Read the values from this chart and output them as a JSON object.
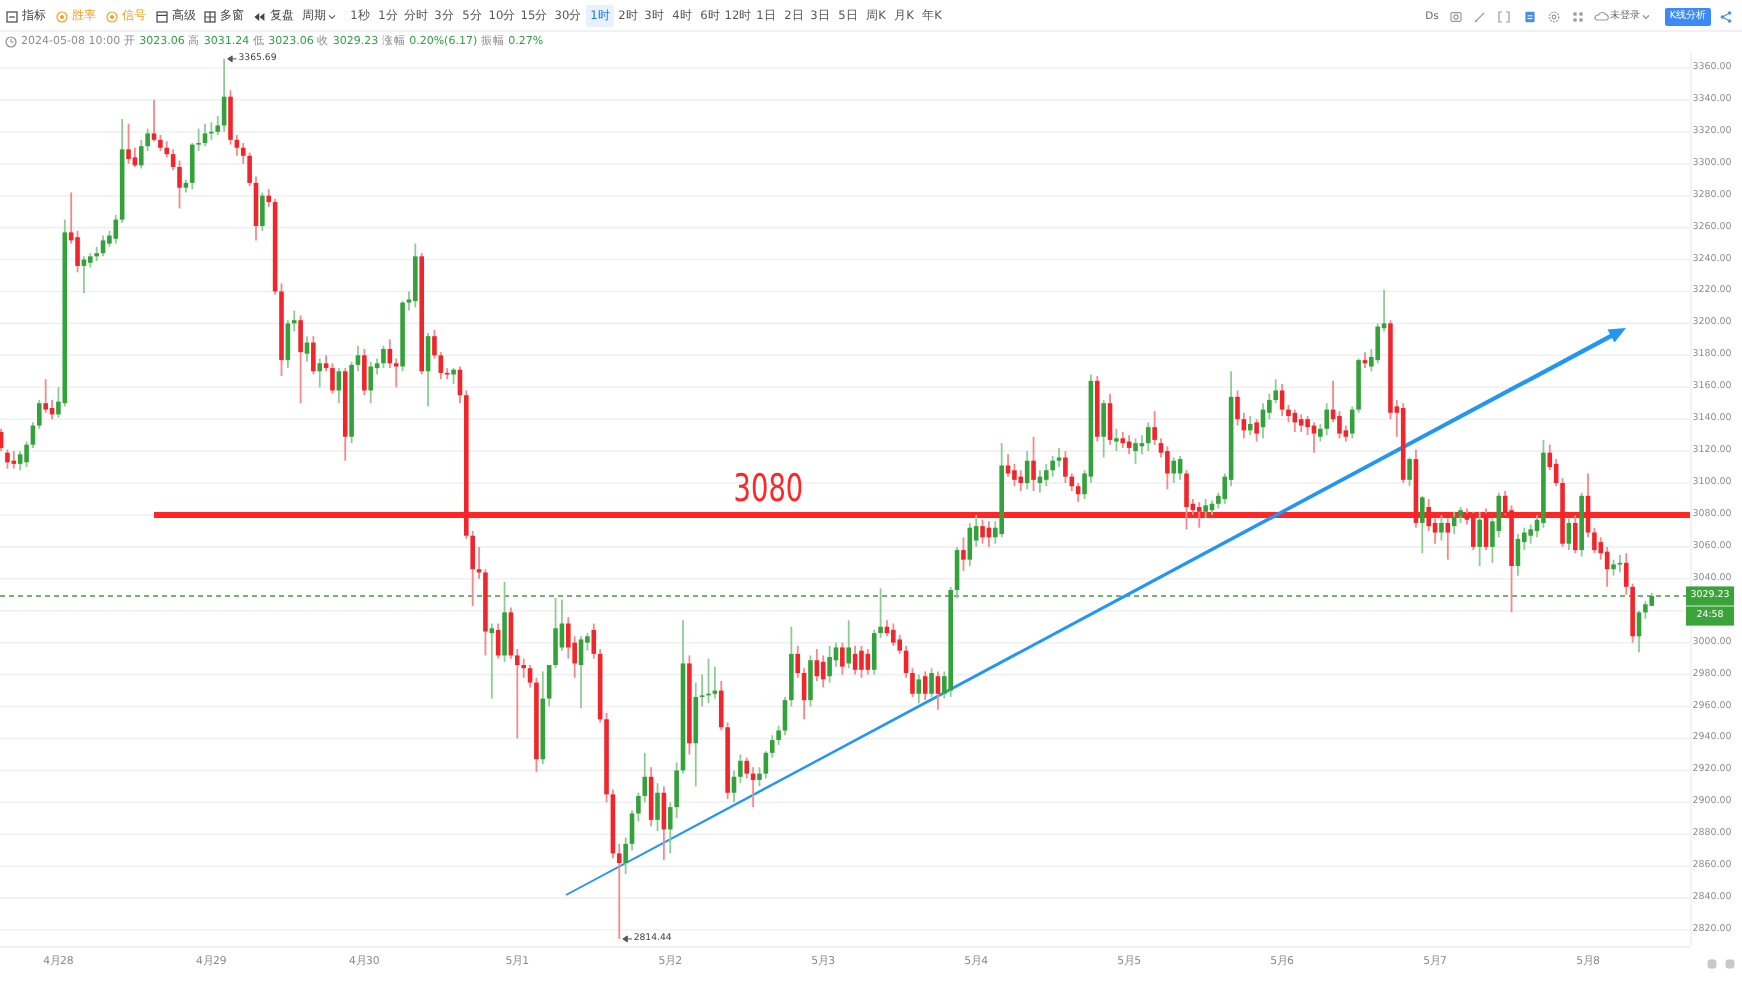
{
  "chart_data": {
    "type": "candlestick",
    "subtitle": "2024-05-08 10:00 开 3023.06 高 3031.24 低 3023.06 收 3029.23 涨幅 0.20%(6.17) 振幅 0.27%",
    "x": [
      "2024-04-27T15:00",
      "2024-04-27T16:00",
      "2024-04-27T17:00",
      "2024-04-27T18:00",
      "2024-04-27T19:00",
      "2024-04-27T20:00",
      "2024-04-27T21:00",
      "2024-04-27T22:00",
      "2024-04-27T23:00",
      "2024-04-28T00:00",
      "2024-04-28T01:00",
      "2024-04-28T02:00",
      "2024-04-28T03:00",
      "2024-04-28T04:00",
      "2024-04-28T05:00",
      "2024-04-28T06:00",
      "2024-04-28T07:00",
      "2024-04-28T08:00",
      "2024-04-28T09:00",
      "2024-04-28T10:00",
      "2024-04-28T11:00",
      "2024-04-28T12:00",
      "2024-04-28T13:00",
      "2024-04-28T14:00",
      "2024-04-28T15:00",
      "2024-04-28T16:00",
      "2024-04-28T17:00",
      "2024-04-28T18:00",
      "2024-04-28T19:00",
      "2024-04-28T20:00",
      "2024-04-28T21:00",
      "2024-04-28T22:00",
      "2024-04-28T23:00",
      "2024-04-29T00:00",
      "2024-04-29T01:00",
      "2024-04-29T02:00",
      "2024-04-29T03:00",
      "2024-04-29T04:00",
      "2024-04-29T05:00",
      "2024-04-29T06:00",
      "2024-04-29T07:00",
      "2024-04-29T08:00",
      "2024-04-29T09:00",
      "2024-04-29T10:00",
      "2024-04-29T11:00",
      "2024-04-29T12:00",
      "2024-04-29T13:00",
      "2024-04-29T14:00",
      "2024-04-29T15:00",
      "2024-04-29T16:00",
      "2024-04-29T17:00",
      "2024-04-29T18:00",
      "2024-04-29T19:00",
      "2024-04-29T20:00",
      "2024-04-29T21:00",
      "2024-04-29T22:00",
      "2024-04-29T23:00",
      "2024-04-30T00:00",
      "2024-04-30T01:00",
      "2024-04-30T02:00",
      "2024-04-30T03:00",
      "2024-04-30T04:00",
      "2024-04-30T05:00",
      "2024-04-30T06:00",
      "2024-04-30T07:00",
      "2024-04-30T08:00",
      "2024-04-30T09:00",
      "2024-04-30T10:00",
      "2024-04-30T11:00",
      "2024-04-30T12:00",
      "2024-04-30T13:00",
      "2024-04-30T14:00",
      "2024-04-30T15:00",
      "2024-04-30T16:00",
      "2024-04-30T17:00",
      "2024-04-30T18:00",
      "2024-04-30T19:00",
      "2024-04-30T20:00",
      "2024-04-30T21:00",
      "2024-04-30T22:00",
      "2024-04-30T23:00",
      "2024-05-01T00:00",
      "2024-05-01T01:00",
      "2024-05-01T02:00",
      "2024-05-01T03:00",
      "2024-05-01T04:00",
      "2024-05-01T05:00",
      "2024-05-01T06:00",
      "2024-05-01T07:00",
      "2024-05-01T08:00",
      "2024-05-01T09:00",
      "2024-05-01T10:00",
      "2024-05-01T11:00",
      "2024-05-01T12:00",
      "2024-05-01T13:00",
      "2024-05-01T14:00",
      "2024-05-01T15:00",
      "2024-05-01T16:00",
      "2024-05-01T17:00",
      "2024-05-01T18:00",
      "2024-05-01T19:00",
      "2024-05-01T20:00",
      "2024-05-01T21:00",
      "2024-05-01T22:00",
      "2024-05-01T23:00",
      "2024-05-02T00:00",
      "2024-05-02T01:00",
      "2024-05-02T02:00",
      "2024-05-02T03:00",
      "2024-05-02T04:00",
      "2024-05-02T05:00",
      "2024-05-02T06:00",
      "2024-05-02T07:00",
      "2024-05-02T08:00",
      "2024-05-02T09:00",
      "2024-05-02T10:00",
      "2024-05-02T11:00",
      "2024-05-02T12:00",
      "2024-05-02T13:00",
      "2024-05-02T14:00",
      "2024-05-02T15:00",
      "2024-05-02T16:00",
      "2024-05-02T17:00",
      "2024-05-02T18:00",
      "2024-05-02T19:00",
      "2024-05-02T20:00",
      "2024-05-02T21:00",
      "2024-05-02T22:00",
      "2024-05-02T23:00",
      "2024-05-03T00:00",
      "2024-05-03T01:00",
      "2024-05-03T02:00",
      "2024-05-03T03:00",
      "2024-05-03T04:00",
      "2024-05-03T05:00",
      "2024-05-03T06:00",
      "2024-05-03T07:00",
      "2024-05-03T08:00",
      "2024-05-03T09:00",
      "2024-05-03T10:00",
      "2024-05-03T11:00",
      "2024-05-03T12:00",
      "2024-05-03T13:00",
      "2024-05-03T14:00",
      "2024-05-03T15:00",
      "2024-05-03T16:00",
      "2024-05-03T17:00",
      "2024-05-03T18:00",
      "2024-05-03T19:00",
      "2024-05-03T20:00",
      "2024-05-03T21:00",
      "2024-05-03T22:00",
      "2024-05-03T23:00",
      "2024-05-04T00:00",
      "2024-05-04T01:00",
      "2024-05-04T02:00",
      "2024-05-04T03:00",
      "2024-05-04T04:00",
      "2024-05-04T05:00",
      "2024-05-04T06:00",
      "2024-05-04T07:00",
      "2024-05-04T08:00",
      "2024-05-04T09:00",
      "2024-05-04T10:00",
      "2024-05-04T11:00",
      "2024-05-04T12:00",
      "2024-05-04T13:00",
      "2024-05-04T14:00",
      "2024-05-04T15:00",
      "2024-05-04T16:00",
      "2024-05-04T17:00",
      "2024-05-04T18:00",
      "2024-05-04T19:00",
      "2024-05-04T20:00",
      "2024-05-04T21:00",
      "2024-05-04T22:00",
      "2024-05-04T23:00",
      "2024-05-05T00:00",
      "2024-05-05T01:00",
      "2024-05-05T02:00",
      "2024-05-05T03:00",
      "2024-05-05T04:00",
      "2024-05-05T05:00",
      "2024-05-05T06:00",
      "2024-05-05T07:00",
      "2024-05-05T08:00",
      "2024-05-05T09:00",
      "2024-05-05T10:00",
      "2024-05-05T11:00",
      "2024-05-05T12:00",
      "2024-05-05T13:00",
      "2024-05-05T14:00",
      "2024-05-05T15:00",
      "2024-05-05T16:00",
      "2024-05-05T17:00",
      "2024-05-05T18:00",
      "2024-05-05T19:00",
      "2024-05-05T20:00",
      "2024-05-05T21:00",
      "2024-05-05T22:00",
      "2024-05-05T23:00",
      "2024-05-06T00:00",
      "2024-05-06T01:00",
      "2024-05-06T02:00",
      "2024-05-06T03:00",
      "2024-05-06T04:00",
      "2024-05-06T05:00",
      "2024-05-06T06:00",
      "2024-05-06T07:00",
      "2024-05-06T08:00",
      "2024-05-06T09:00",
      "2024-05-06T10:00",
      "2024-05-06T11:00",
      "2024-05-06T12:00",
      "2024-05-06T13:00",
      "2024-05-06T14:00",
      "2024-05-06T15:00",
      "2024-05-06T16:00",
      "2024-05-06T17:00",
      "2024-05-06T18:00",
      "2024-05-06T19:00",
      "2024-05-06T20:00",
      "2024-05-06T21:00",
      "2024-05-06T22:00",
      "2024-05-06T23:00",
      "2024-05-07T00:00",
      "2024-05-07T01:00",
      "2024-05-07T02:00",
      "2024-05-07T03:00",
      "2024-05-07T04:00",
      "2024-05-07T05:00",
      "2024-05-07T06:00",
      "2024-05-07T07:00",
      "2024-05-07T08:00",
      "2024-05-07T09:00",
      "2024-05-07T10:00",
      "2024-05-07T11:00",
      "2024-05-07T12:00",
      "2024-05-07T13:00",
      "2024-05-07T14:00",
      "2024-05-07T15:00",
      "2024-05-07T16:00",
      "2024-05-07T17:00",
      "2024-05-07T18:00",
      "2024-05-07T19:00",
      "2024-05-07T20:00",
      "2024-05-07T21:00",
      "2024-05-07T22:00",
      "2024-05-07T23:00",
      "2024-05-08T00:00",
      "2024-05-08T01:00",
      "2024-05-08T02:00",
      "2024-05-08T03:00",
      "2024-05-08T04:00",
      "2024-05-08T05:00",
      "2024-05-08T06:00",
      "2024-05-08T07:00",
      "2024-05-08T08:00",
      "2024-05-08T09:00",
      "2024-05-08T10:00"
    ],
    "ohlc": [
      [
        3132,
        3134,
        3120,
        3122
      ],
      [
        3119,
        3121,
        3109,
        3113
      ],
      [
        3114,
        3120,
        3109,
        3112
      ],
      [
        3112,
        3120,
        3108,
        3118
      ],
      [
        3113,
        3126,
        3110,
        3124
      ],
      [
        3124,
        3138,
        3122,
        3136
      ],
      [
        3136,
        3152,
        3134,
        3150
      ],
      [
        3150,
        3165,
        3144,
        3146
      ],
      [
        3147,
        3152,
        3140,
        3143
      ],
      [
        3143,
        3160,
        3141,
        3151
      ],
      [
        3150,
        3265,
        3148,
        3257
      ],
      [
        3257,
        3282,
        3250,
        3252
      ],
      [
        3254,
        3258,
        3232,
        3236
      ],
      [
        3236,
        3242,
        3219,
        3240
      ],
      [
        3238,
        3244,
        3235,
        3242
      ],
      [
        3242,
        3248,
        3239,
        3244
      ],
      [
        3244,
        3255,
        3242,
        3252
      ],
      [
        3250,
        3258,
        3248,
        3255
      ],
      [
        3253,
        3268,
        3250,
        3265
      ],
      [
        3265,
        3328,
        3263,
        3309
      ],
      [
        3309,
        3325,
        3300,
        3303
      ],
      [
        3304,
        3310,
        3298,
        3299
      ],
      [
        3299,
        3315,
        3297,
        3311
      ],
      [
        3311,
        3322,
        3308,
        3319
      ],
      [
        3319,
        3340,
        3314,
        3315
      ],
      [
        3315,
        3318,
        3308,
        3310
      ],
      [
        3310,
        3314,
        3304,
        3306
      ],
      [
        3306,
        3309,
        3296,
        3298
      ],
      [
        3298,
        3302,
        3272,
        3285
      ],
      [
        3285,
        3290,
        3282,
        3288
      ],
      [
        3288,
        3313,
        3284,
        3312
      ],
      [
        3312,
        3322,
        3308,
        3313
      ],
      [
        3313,
        3325,
        3311,
        3319
      ],
      [
        3319,
        3326,
        3315,
        3320
      ],
      [
        3320,
        3330,
        3318,
        3324
      ],
      [
        3324,
        3365.69,
        3320,
        3342
      ],
      [
        3342,
        3346,
        3312,
        3315
      ],
      [
        3315,
        3318,
        3305,
        3310
      ],
      [
        3310,
        3313,
        3300,
        3305
      ],
      [
        3305,
        3307,
        3286,
        3288
      ],
      [
        3288,
        3292,
        3252,
        3261
      ],
      [
        3261,
        3282,
        3258,
        3280
      ],
      [
        3280,
        3284,
        3273,
        3276
      ],
      [
        3276,
        3278,
        3218,
        3220
      ],
      [
        3220,
        3225,
        3167,
        3177
      ],
      [
        3177,
        3202,
        3172,
        3200
      ],
      [
        3200,
        3208,
        3195,
        3202
      ],
      [
        3202,
        3205,
        3150,
        3182
      ],
      [
        3181,
        3192,
        3176,
        3188
      ],
      [
        3188,
        3192,
        3168,
        3170
      ],
      [
        3170,
        3178,
        3160,
        3175
      ],
      [
        3175,
        3180,
        3170,
        3172
      ],
      [
        3172,
        3175,
        3156,
        3158
      ],
      [
        3158,
        3172,
        3150,
        3170
      ],
      [
        3170,
        3172,
        3114,
        3129
      ],
      [
        3129,
        3176,
        3125,
        3174
      ],
      [
        3174,
        3186,
        3170,
        3180
      ],
      [
        3180,
        3184,
        3155,
        3158
      ],
      [
        3158,
        3176,
        3150,
        3173
      ],
      [
        3172,
        3178,
        3168,
        3175
      ],
      [
        3175,
        3186,
        3172,
        3184
      ],
      [
        3184,
        3190,
        3172,
        3175
      ],
      [
        3175,
        3178,
        3160,
        3173
      ],
      [
        3173,
        3214,
        3170,
        3213
      ],
      [
        3213,
        3220,
        3208,
        3215
      ],
      [
        3214,
        3250,
        3210,
        3242
      ],
      [
        3242,
        3244,
        3168,
        3170
      ],
      [
        3170,
        3194,
        3148,
        3192
      ],
      [
        3192,
        3196,
        3178,
        3180
      ],
      [
        3180,
        3182,
        3165,
        3169
      ],
      [
        3169,
        3172,
        3165,
        3168
      ],
      [
        3168,
        3172,
        3162,
        3171
      ],
      [
        3171,
        3173,
        3150,
        3155
      ],
      [
        3155,
        3158,
        3065,
        3067
      ],
      [
        3067,
        3070,
        3023,
        3046
      ],
      [
        3046,
        3060,
        3040,
        3044
      ],
      [
        3044,
        3046,
        2992,
        3007
      ],
      [
        3006,
        3012,
        2965,
        3009
      ],
      [
        3008,
        3012,
        2990,
        2992
      ],
      [
        2992,
        3038,
        2988,
        3019
      ],
      [
        3019,
        3022,
        2990,
        2992
      ],
      [
        2992,
        2996,
        2940,
        2986
      ],
      [
        2986,
        2990,
        2978,
        2984
      ],
      [
        2984,
        2986,
        2972,
        2975
      ],
      [
        2975,
        2978,
        2919,
        2927
      ],
      [
        2927,
        2982,
        2924,
        2965
      ],
      [
        2965,
        2986,
        2960,
        2986
      ],
      [
        2986,
        3028,
        2984,
        3009
      ],
      [
        2997,
        3027,
        2995,
        3012
      ],
      [
        3012,
        3016,
        2990,
        2997
      ],
      [
        3000,
        3004,
        2978,
        2987
      ],
      [
        2986,
        3004,
        2959,
        3002
      ],
      [
        3000,
        3006,
        2995,
        3004
      ],
      [
        3008,
        3012,
        2990,
        2993
      ],
      [
        2993,
        2996,
        2950,
        2952
      ],
      [
        2952,
        2956,
        2900,
        2905
      ],
      [
        2905,
        2908,
        2865,
        2868
      ],
      [
        2868,
        2874,
        2814.44,
        2862
      ],
      [
        2862,
        2878,
        2855,
        2874
      ],
      [
        2874,
        2895,
        2870,
        2893
      ],
      [
        2893,
        2906,
        2888,
        2904
      ],
      [
        2904,
        2931,
        2900,
        2916
      ],
      [
        2916,
        2922,
        2885,
        2889
      ],
      [
        2889,
        2912,
        2882,
        2906
      ],
      [
        2906,
        2910,
        2864,
        2883
      ],
      [
        2883,
        2900,
        2868,
        2897
      ],
      [
        2897,
        2925,
        2890,
        2920
      ],
      [
        2920,
        3014,
        2918,
        2987
      ],
      [
        2987,
        2992,
        2930,
        2937
      ],
      [
        2937,
        2975,
        2910,
        2966
      ],
      [
        2966,
        2980,
        2960,
        2967
      ],
      [
        2967,
        2990,
        2962,
        2968
      ],
      [
        2968,
        2985,
        2965,
        2970
      ],
      [
        2970,
        2976,
        2945,
        2947
      ],
      [
        2947,
        2950,
        2902,
        2906
      ],
      [
        2906,
        2920,
        2900,
        2916
      ],
      [
        2916,
        2930,
        2912,
        2926
      ],
      [
        2926,
        2928,
        2915,
        2918
      ],
      [
        2918,
        2922,
        2897,
        2914
      ],
      [
        2914,
        2922,
        2910,
        2918
      ],
      [
        2918,
        2932,
        2915,
        2931
      ],
      [
        2931,
        2942,
        2928,
        2939
      ],
      [
        2939,
        2948,
        2936,
        2945
      ],
      [
        2945,
        2966,
        2942,
        2964
      ],
      [
        2964,
        3010,
        2960,
        2993
      ],
      [
        2993,
        2998,
        2978,
        2981
      ],
      [
        2981,
        2984,
        2952,
        2964
      ],
      [
        2964,
        2992,
        2960,
        2989
      ],
      [
        2989,
        2996,
        2976,
        2979
      ],
      [
        2988,
        2992,
        2972,
        2977
      ],
      [
        2979,
        2998,
        2975,
        2991
      ],
      [
        2989,
        3000,
        2985,
        2997
      ],
      [
        2997,
        3000,
        2980,
        2985
      ],
      [
        2987,
        3014,
        2984,
        2997
      ],
      [
        2993,
        2998,
        2980,
        2983
      ],
      [
        2995,
        2998,
        2978,
        2983
      ],
      [
        2993,
        2996,
        2980,
        2983
      ],
      [
        2983,
        3008,
        2980,
        3006
      ],
      [
        3006,
        3034,
        3003,
        3010
      ],
      [
        3010,
        3014,
        3004,
        3006
      ],
      [
        3008,
        3012,
        2998,
        3000
      ],
      [
        3002,
        3005,
        2993,
        2995
      ],
      [
        2995,
        2998,
        2978,
        2981
      ],
      [
        2981,
        2984,
        2966,
        2968
      ],
      [
        2968,
        2980,
        2962,
        2977
      ],
      [
        2979,
        2982,
        2964,
        2968
      ],
      [
        2968,
        2984,
        2966,
        2981
      ],
      [
        2979,
        2982,
        2958,
        2968
      ],
      [
        2968,
        2982,
        2965,
        2979
      ],
      [
        2970,
        3035,
        2966,
        3033
      ],
      [
        3033,
        3060,
        3028,
        3058
      ],
      [
        3058,
        3066,
        3045,
        3052
      ],
      [
        3052,
        3075,
        3048,
        3072
      ],
      [
        3064,
        3080,
        3060,
        3073
      ],
      [
        3073,
        3077,
        3062,
        3066
      ],
      [
        3072,
        3076,
        3060,
        3066
      ],
      [
        3066,
        3076,
        3062,
        3072
      ],
      [
        3068,
        3125,
        3066,
        3111
      ],
      [
        3111,
        3118,
        3104,
        3106
      ],
      [
        3108,
        3112,
        3098,
        3102
      ],
      [
        3104,
        3108,
        3095,
        3100
      ],
      [
        3100,
        3120,
        3096,
        3114
      ],
      [
        3114,
        3129,
        3095,
        3102
      ],
      [
        3100,
        3108,
        3094,
        3104
      ],
      [
        3102,
        3112,
        3098,
        3108
      ],
      [
        3108,
        3117,
        3104,
        3114
      ],
      [
        3114,
        3122,
        3110,
        3116
      ],
      [
        3116,
        3120,
        3100,
        3104
      ],
      [
        3104,
        3106,
        3095,
        3098
      ],
      [
        3098,
        3100,
        3088,
        3093
      ],
      [
        3093,
        3108,
        3090,
        3106
      ],
      [
        3104,
        3168,
        3100,
        3164
      ],
      [
        3164,
        3167,
        3126,
        3129
      ],
      [
        3129,
        3152,
        3116,
        3150
      ],
      [
        3150,
        3156,
        3124,
        3127
      ],
      [
        3126,
        3134,
        3120,
        3128
      ],
      [
        3128,
        3132,
        3122,
        3125
      ],
      [
        3126,
        3130,
        3118,
        3122
      ],
      [
        3120,
        3128,
        3112,
        3125
      ],
      [
        3123,
        3130,
        3118,
        3125
      ],
      [
        3125,
        3138,
        3120,
        3135
      ],
      [
        3135,
        3145,
        3124,
        3127
      ],
      [
        3125,
        3128,
        3116,
        3119
      ],
      [
        3120,
        3123,
        3096,
        3106
      ],
      [
        3106,
        3116,
        3100,
        3114
      ],
      [
        3106,
        3117,
        3102,
        3115
      ],
      [
        3106,
        3108,
        3071,
        3085
      ],
      [
        3087,
        3090,
        3080,
        3083
      ],
      [
        3085,
        3088,
        3072,
        3082
      ],
      [
        3082,
        3090,
        3078,
        3086
      ],
      [
        3083,
        3089,
        3080,
        3087
      ],
      [
        3087,
        3094,
        3084,
        3092
      ],
      [
        3090,
        3106,
        3087,
        3104
      ],
      [
        3102,
        3170,
        3098,
        3154
      ],
      [
        3154,
        3158,
        3136,
        3140
      ],
      [
        3140,
        3144,
        3128,
        3133
      ],
      [
        3133,
        3142,
        3130,
        3137
      ],
      [
        3138,
        3140,
        3126,
        3131
      ],
      [
        3135,
        3150,
        3128,
        3146
      ],
      [
        3144,
        3156,
        3140,
        3152
      ],
      [
        3152,
        3165,
        3150,
        3158
      ],
      [
        3158,
        3162,
        3142,
        3146
      ],
      [
        3146,
        3149,
        3138,
        3142
      ],
      [
        3144,
        3146,
        3132,
        3138
      ],
      [
        3140,
        3143,
        3132,
        3136
      ],
      [
        3140,
        3142,
        3130,
        3135
      ],
      [
        3136,
        3138,
        3119,
        3131
      ],
      [
        3129,
        3137,
        3126,
        3134
      ],
      [
        3134,
        3150,
        3130,
        3146
      ],
      [
        3146,
        3164,
        3138,
        3140
      ],
      [
        3142,
        3145,
        3128,
        3131
      ],
      [
        3133,
        3136,
        3126,
        3129
      ],
      [
        3131,
        3148,
        3128,
        3146
      ],
      [
        3146,
        3178,
        3144,
        3177
      ],
      [
        3177,
        3182,
        3172,
        3175
      ],
      [
        3173,
        3184,
        3170,
        3179
      ],
      [
        3177,
        3200,
        3175,
        3198
      ],
      [
        3197,
        3221,
        3195,
        3200
      ],
      [
        3200,
        3202,
        3140,
        3144
      ],
      [
        3148,
        3152,
        3129,
        3144
      ],
      [
        3147,
        3150,
        3100,
        3102
      ],
      [
        3102,
        3116,
        3098,
        3115
      ],
      [
        3115,
        3121,
        3072,
        3075
      ],
      [
        3075,
        3092,
        3056,
        3091
      ],
      [
        3085,
        3090,
        3070,
        3073
      ],
      [
        3075,
        3078,
        3062,
        3069
      ],
      [
        3069,
        3080,
        3064,
        3075
      ],
      [
        3075,
        3078,
        3052,
        3069
      ],
      [
        3073,
        3082,
        3068,
        3079
      ],
      [
        3079,
        3085,
        3075,
        3083
      ],
      [
        3081,
        3084,
        3074,
        3077
      ],
      [
        3081,
        3082,
        3058,
        3060
      ],
      [
        3060,
        3082,
        3048,
        3077
      ],
      [
        3081,
        3084,
        3058,
        3060
      ],
      [
        3060,
        3078,
        3050,
        3076
      ],
      [
        3070,
        3094,
        3066,
        3092
      ],
      [
        3092,
        3095,
        3080,
        3081
      ],
      [
        3083,
        3086,
        3019,
        3048
      ],
      [
        3048,
        3068,
        3042,
        3065
      ],
      [
        3063,
        3072,
        3058,
        3069
      ],
      [
        3067,
        3074,
        3062,
        3071
      ],
      [
        3070,
        3080,
        3066,
        3077
      ],
      [
        3075,
        3127,
        3072,
        3119
      ],
      [
        3119,
        3124,
        3108,
        3110
      ],
      [
        3112,
        3115,
        3098,
        3100
      ],
      [
        3100,
        3103,
        3060,
        3062
      ],
      [
        3062,
        3078,
        3058,
        3075
      ],
      [
        3075,
        3080,
        3056,
        3058
      ],
      [
        3058,
        3094,
        3054,
        3092
      ],
      [
        3092,
        3106,
        3066,
        3069
      ],
      [
        3069,
        3072,
        3056,
        3058
      ],
      [
        3063,
        3066,
        3052,
        3056
      ],
      [
        3057,
        3060,
        3035,
        3046
      ],
      [
        3046,
        3052,
        3042,
        3049
      ],
      [
        3049,
        3055,
        3044,
        3050
      ],
      [
        3050,
        3056,
        3030,
        3035
      ],
      [
        3035,
        3037,
        3000,
        3004
      ],
      [
        3004,
        3020,
        2994,
        3019
      ],
      [
        3019,
        3026,
        3015,
        3024
      ],
      [
        3023.06,
        3031.24,
        3023.06,
        3029.23
      ]
    ],
    "colors": [
      "#f2252b",
      "#f2252b",
      "#f2252b",
      "#34a23a",
      "#34a23a",
      "#34a23a",
      "#34a23a",
      "#f2252b",
      "#f2252b",
      "#34a23a",
      "#34a23a",
      "#f2252b",
      "#f2252b",
      "#34a23a",
      "#34a23a",
      "#34a23a",
      "#34a23a",
      "#34a23a",
      "#34a23a",
      "#34a23a",
      "#f2252b",
      "#f2252b",
      "#34a23a",
      "#34a23a",
      "#f2252b",
      "#f2252b",
      "#f2252b",
      "#f2252b",
      "#f2252b",
      "#34a23a",
      "#34a23a",
      "#34a23a",
      "#34a23a",
      "#34a23a",
      "#34a23a",
      "#34a23a",
      "#f2252b",
      "#f2252b",
      "#f2252b",
      "#f2252b",
      "#f2252b",
      "#34a23a",
      "#f2252b",
      "#f2252b",
      "#f2252b",
      "#34a23a",
      "#34a23a",
      "#f2252b",
      "#34a23a",
      "#f2252b",
      "#34a23a",
      "#f2252b",
      "#f2252b",
      "#34a23a",
      "#f2252b",
      "#34a23a",
      "#34a23a",
      "#f2252b",
      "#34a23a",
      "#34a23a",
      "#34a23a",
      "#f2252b",
      "#f2252b",
      "#34a23a",
      "#34a23a",
      "#34a23a",
      "#f2252b",
      "#34a23a",
      "#f2252b",
      "#f2252b",
      "#f2252b",
      "#34a23a",
      "#f2252b",
      "#f2252b",
      "#f2252b",
      "#f2252b",
      "#f2252b",
      "#34a23a",
      "#f2252b",
      "#34a23a",
      "#f2252b",
      "#f2252b",
      "#f2252b",
      "#f2252b",
      "#f2252b",
      "#34a23a",
      "#34a23a",
      "#34a23a",
      "#34a23a",
      "#f2252b",
      "#f2252b",
      "#34a23a",
      "#34a23a",
      "#f2252b",
      "#f2252b",
      "#f2252b",
      "#f2252b",
      "#f2252b",
      "#34a23a",
      "#34a23a",
      "#34a23a",
      "#34a23a",
      "#f2252b",
      "#34a23a",
      "#f2252b",
      "#34a23a",
      "#34a23a",
      "#34a23a",
      "#f2252b",
      "#34a23a",
      "#34a23a",
      "#34a23a",
      "#34a23a",
      "#f2252b",
      "#f2252b",
      "#34a23a",
      "#34a23a",
      "#f2252b",
      "#f2252b",
      "#34a23a",
      "#34a23a",
      "#34a23a",
      "#34a23a",
      "#34a23a",
      "#34a23a",
      "#f2252b",
      "#f2252b",
      "#34a23a",
      "#f2252b",
      "#f2252b",
      "#34a23a",
      "#34a23a",
      "#f2252b",
      "#34a23a",
      "#f2252b",
      "#f2252b",
      "#f2252b",
      "#34a23a",
      "#34a23a",
      "#f2252b",
      "#f2252b",
      "#f2252b",
      "#f2252b",
      "#f2252b",
      "#34a23a",
      "#f2252b",
      "#34a23a",
      "#f2252b",
      "#34a23a",
      "#34a23a",
      "#34a23a",
      "#f2252b",
      "#34a23a",
      "#34a23a",
      "#f2252b",
      "#f2252b",
      "#34a23a",
      "#34a23a",
      "#f2252b",
      "#f2252b",
      "#f2252b",
      "#34a23a",
      "#f2252b",
      "#34a23a",
      "#34a23a",
      "#34a23a",
      "#34a23a",
      "#f2252b",
      "#f2252b",
      "#f2252b",
      "#34a23a",
      "#34a23a",
      "#f2252b",
      "#34a23a",
      "#f2252b",
      "#34a23a",
      "#f2252b",
      "#f2252b",
      "#34a23a",
      "#34a23a",
      "#34a23a",
      "#f2252b",
      "#f2252b",
      "#f2252b",
      "#34a23a",
      "#34a23a",
      "#f2252b",
      "#f2252b",
      "#f2252b",
      "#34a23a",
      "#34a23a",
      "#34a23a",
      "#34a23a",
      "#34a23a",
      "#f2252b",
      "#f2252b",
      "#34a23a",
      "#f2252b",
      "#34a23a",
      "#34a23a",
      "#34a23a",
      "#f2252b",
      "#f2252b",
      "#f2252b",
      "#f2252b",
      "#f2252b",
      "#f2252b",
      "#34a23a",
      "#34a23a",
      "#f2252b",
      "#f2252b",
      "#f2252b",
      "#34a23a",
      "#34a23a",
      "#f2252b",
      "#34a23a",
      "#34a23a",
      "#34a23a",
      "#f2252b",
      "#f2252b",
      "#f2252b",
      "#34a23a",
      "#f2252b",
      "#34a23a",
      "#f2252b",
      "#f2252b",
      "#34a23a",
      "#f2252b",
      "#34a23a",
      "#34a23a",
      "#f2252b",
      "#f2252b",
      "#34a23a",
      "#f2252b",
      "#34a23a",
      "#34a23a",
      "#f2252b",
      "#f2252b",
      "#34a23a",
      "#34a23a",
      "#34a23a",
      "#34a23a",
      "#34a23a",
      "#f2252b",
      "#f2252b",
      "#f2252b",
      "#34a23a",
      "#f2252b",
      "#34a23a",
      "#f2252b",
      "#f2252b",
      "#f2252b",
      "#f2252b",
      "#34a23a",
      "#34a23a",
      "#f2252b",
      "#f2252b",
      "#34a23a",
      "#34a23a",
      "#34a23a"
    ],
    "series": [
      {
        "type": "line",
        "name": "3080",
        "color": "#ff2626",
        "x": [
          "2024-04-28T15:00",
          "2024-05-08T16:00"
        ],
        "values": [
          3080,
          3080
        ]
      }
    ],
    "xlim": [
      "2024-04-27T14:50",
      "2024-05-08T16:00"
    ],
    "ylim": [
      2810,
      3370
    ],
    "xticks": [
      {
        "value": "2024-04-28",
        "label": "4月28"
      },
      {
        "value": "2024-04-29",
        "label": "4月29"
      },
      {
        "value": "2024-04-30",
        "label": "4月30"
      },
      {
        "value": "2024-05-01",
        "label": "5月1"
      },
      {
        "value": "2024-05-02",
        "label": "5月2"
      },
      {
        "value": "2024-05-03",
        "label": "5月3"
      },
      {
        "value": "2024-05-04",
        "label": "5月4"
      },
      {
        "value": "2024-05-05",
        "label": "5月5"
      },
      {
        "value": "2024-05-06",
        "label": "5月6"
      },
      {
        "value": "2024-05-07",
        "label": "5月7"
      },
      {
        "value": "2024-05-08",
        "label": "5月8"
      }
    ],
    "yticks": [
      {
        "value": 2820,
        "label": "2820.00"
      },
      {
        "value": 2840,
        "label": "2840.00"
      },
      {
        "value": 2860,
        "label": "2860.00"
      },
      {
        "value": 2880,
        "label": "2880.00"
      },
      {
        "value": 2900,
        "label": "2900.00"
      },
      {
        "value": 2920,
        "label": "2920.00"
      },
      {
        "value": 2940,
        "label": "2940.00"
      },
      {
        "value": 2960,
        "label": "2960.00"
      },
      {
        "value": 2980,
        "label": "2980.00"
      },
      {
        "value": 3000,
        "label": "3000.00"
      },
      {
        "value": 3020,
        "label": null
      },
      {
        "value": 3040,
        "label": "3040.00"
      },
      {
        "value": 3060,
        "label": "3060.00"
      },
      {
        "value": 3080,
        "label": "3080.00"
      },
      {
        "value": 3100,
        "label": "3100.00"
      },
      {
        "value": 3120,
        "label": "3120.00"
      },
      {
        "value": 3140,
        "label": "3140.00"
      },
      {
        "value": 3160,
        "label": "3160.00"
      },
      {
        "value": 3180,
        "label": "3180.00"
      },
      {
        "value": 3200,
        "label": "3200.00"
      },
      {
        "value": 3220,
        "label": "3220.00"
      },
      {
        "value": 3240,
        "label": "3240.00"
      },
      {
        "value": 3260,
        "label": "3260.00"
      },
      {
        "value": 3280,
        "label": "3280.00"
      },
      {
        "value": 3300,
        "label": "3300.00"
      },
      {
        "value": 3320,
        "label": "3320.00"
      },
      {
        "value": 3340,
        "label": "3340.00"
      },
      {
        "value": 3360,
        "label": "3360.00"
      }
    ],
    "grid": "y",
    "ref_lines": [
      {
        "axis": "y",
        "value": 3029.23,
        "label": "3029.23",
        "color": "#3aa43a",
        "line_style": "dashed"
      }
    ],
    "annotations": [
      "24:58",
      "指标",
      "胜率",
      "信号",
      "高级",
      "多窗",
      "复盘",
      "周期",
      "1秒",
      "1分",
      "分时",
      "3分",
      "5分",
      "10分",
      "15分",
      "30分",
      "1时",
      "2时",
      "3时",
      "4时",
      "6时",
      "12时",
      "1日",
      "2日",
      "3日",
      "5日",
      "周K",
      "月K",
      "年K",
      "Ds",
      "未登录",
      "K线分析",
      {
        "text": "3365.69",
        "x": "2024-04-29T02:00",
        "y": 3365.69
      },
      {
        "text": "2814.44",
        "x": "2024-05-01T16:00",
        "y": 2814.44
      }
    ]
  }
}
